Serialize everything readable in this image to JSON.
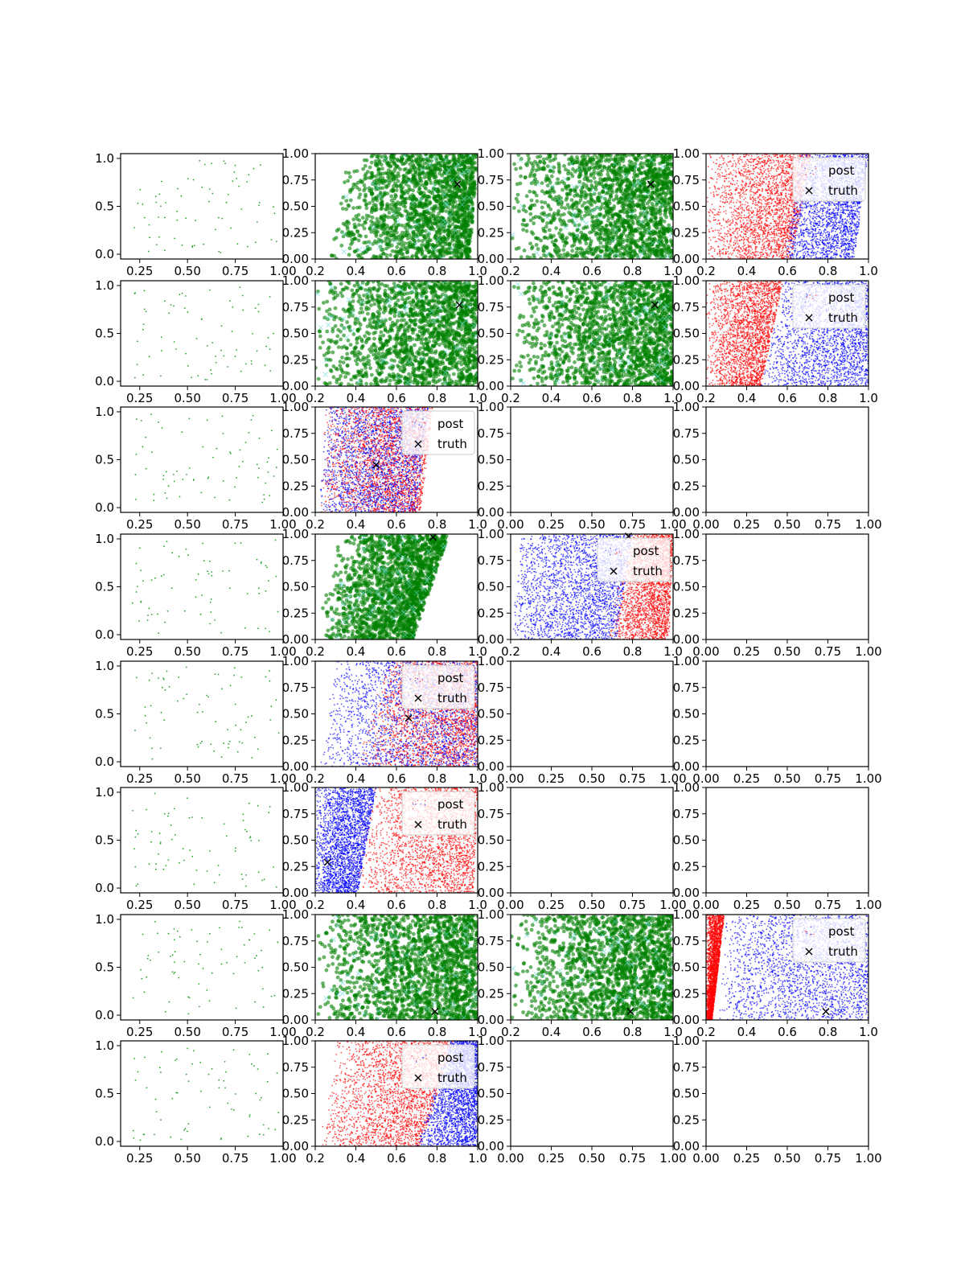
{
  "figure": {
    "rows": 8,
    "cols": 4
  },
  "legend_labels": {
    "post": "post",
    "truth": "truth"
  },
  "colors": {
    "sample": "#2ca02c",
    "green": "#008000",
    "cyan": "#66d9d9",
    "red": "#ff0000",
    "blue": "#0000ff",
    "truth": "#000000"
  },
  "chart_data": [
    {
      "row": 1,
      "col": 1,
      "type": "scatter",
      "style": "sample",
      "xlim": [
        0.15,
        1.0
      ],
      "ylim": [
        -0.05,
        1.05
      ],
      "xticks": [
        "0.25",
        "0.50",
        "0.75",
        "1.00"
      ],
      "yticks": [
        "0.0",
        "0.5",
        "1.0"
      ],
      "n_points": 70
    },
    {
      "row": 1,
      "col": 2,
      "type": "scatter",
      "style": "green",
      "xlim": [
        0.2,
        1.0
      ],
      "ylim": [
        0.0,
        1.0
      ],
      "xticks": [
        "0.2",
        "0.4",
        "0.6",
        "0.8",
        "1.0"
      ],
      "yticks": [
        "0.00",
        "0.25",
        "0.50",
        "0.75",
        "1.00"
      ],
      "region": {
        "left_bottom": 0.25,
        "left_top": 0.35,
        "right_bottom": 0.96,
        "right_top": 1.0
      },
      "truth": [
        0.9,
        0.71
      ],
      "legend": false
    },
    {
      "row": 1,
      "col": 3,
      "type": "scatter",
      "style": "green",
      "xlim": [
        0.2,
        1.0
      ],
      "ylim": [
        0.0,
        1.0
      ],
      "xticks": [
        "0.2",
        "0.4",
        "0.6",
        "0.8",
        "1.0"
      ],
      "yticks": [
        "0.00",
        "0.25",
        "0.50",
        "0.75",
        "1.00"
      ],
      "region": {
        "left_bottom": 0.2,
        "left_top": 0.2,
        "right_bottom": 1.0,
        "right_top": 1.0
      },
      "truth": [
        0.89,
        0.71
      ],
      "legend": false
    },
    {
      "row": 1,
      "col": 4,
      "type": "scatter",
      "style": "redblue",
      "xlim": [
        0.2,
        1.0
      ],
      "ylim": [
        0.0,
        1.0
      ],
      "xticks": [
        "0.2",
        "0.4",
        "0.6",
        "0.8",
        "1.0"
      ],
      "yticks": [
        "0.00",
        "0.25",
        "0.50",
        "0.75",
        "1.00"
      ],
      "red": {
        "left_bottom": 0.2,
        "left_top": 0.2,
        "right_bottom": 0.62,
        "right_top": 0.72
      },
      "blue": {
        "left_bottom": 0.58,
        "left_top": 0.66,
        "right_bottom": 0.93,
        "right_top": 1.0
      },
      "legend": true
    },
    {
      "row": 2,
      "col": 1,
      "type": "scatter",
      "style": "sample",
      "xlim": [
        0.15,
        1.0
      ],
      "ylim": [
        -0.05,
        1.05
      ],
      "xticks": [
        "0.25",
        "0.50",
        "0.75",
        "1.00"
      ],
      "yticks": [
        "0.0",
        "0.5",
        "1.0"
      ],
      "n_points": 70
    },
    {
      "row": 2,
      "col": 2,
      "type": "scatter",
      "style": "green",
      "xlim": [
        0.2,
        1.0
      ],
      "ylim": [
        0.0,
        1.0
      ],
      "xticks": [
        "0.2",
        "0.4",
        "0.6",
        "0.8",
        "1.0"
      ],
      "yticks": [
        "0.00",
        "0.25",
        "0.50",
        "0.75",
        "1.00"
      ],
      "region": {
        "left_bottom": 0.2,
        "left_top": 0.2,
        "right_bottom": 1.0,
        "right_top": 1.0
      },
      "truth": [
        0.91,
        0.77
      ],
      "legend": false
    },
    {
      "row": 2,
      "col": 3,
      "type": "scatter",
      "style": "green",
      "xlim": [
        0.2,
        1.0
      ],
      "ylim": [
        0.0,
        1.0
      ],
      "xticks": [
        "0.2",
        "0.4",
        "0.6",
        "0.8",
        "1.0"
      ],
      "yticks": [
        "0.00",
        "0.25",
        "0.50",
        "0.75",
        "1.00"
      ],
      "region": {
        "left_bottom": 0.2,
        "left_top": 0.2,
        "right_bottom": 1.0,
        "right_top": 1.0
      },
      "truth": [
        0.91,
        0.77
      ],
      "legend": false
    },
    {
      "row": 2,
      "col": 4,
      "type": "scatter",
      "style": "redblue",
      "xlim": [
        0.2,
        1.0
      ],
      "ylim": [
        0.0,
        1.0
      ],
      "xticks": [
        "0.2",
        "0.4",
        "0.6",
        "0.8",
        "1.0"
      ],
      "yticks": [
        "0.00",
        "0.25",
        "0.50",
        "0.75",
        "1.00"
      ],
      "red": {
        "left_bottom": 0.2,
        "left_top": 0.2,
        "right_bottom": 0.47,
        "right_top": 0.58
      },
      "blue": {
        "left_bottom": 0.47,
        "left_top": 0.58,
        "right_bottom": 1.0,
        "right_top": 1.0
      },
      "legend": true
    },
    {
      "row": 3,
      "col": 1,
      "type": "scatter",
      "style": "sample",
      "xlim": [
        0.15,
        1.0
      ],
      "ylim": [
        -0.05,
        1.05
      ],
      "xticks": [
        "0.25",
        "0.50",
        "0.75",
        "1.00"
      ],
      "yticks": [
        "0.0",
        "0.5",
        "1.0"
      ],
      "n_points": 70
    },
    {
      "row": 3,
      "col": 2,
      "type": "scatter",
      "style": "redblue",
      "mixed": true,
      "xlim": [
        0.2,
        1.0
      ],
      "ylim": [
        0.0,
        1.0
      ],
      "xticks": [
        "0.2",
        "0.4",
        "0.6",
        "0.8",
        "1.0"
      ],
      "yticks": [
        "0.00",
        "0.25",
        "0.50",
        "0.75",
        "1.00"
      ],
      "red": {
        "left_bottom": 0.22,
        "left_top": 0.25,
        "right_bottom": 0.72,
        "right_top": 0.78
      },
      "blue": {
        "left_bottom": 0.22,
        "left_top": 0.25,
        "right_bottom": 0.7,
        "right_top": 0.76
      },
      "truth": [
        0.5,
        0.45
      ],
      "legend": true
    },
    {
      "row": 3,
      "col": 3,
      "type": "empty",
      "xlim": [
        0.0,
        1.0
      ],
      "ylim": [
        0.0,
        1.0
      ],
      "xticks": [
        "0.00",
        "0.25",
        "0.50",
        "0.75",
        "1.00"
      ],
      "yticks": [
        "0.00",
        "0.25",
        "0.50",
        "0.75",
        "1.00"
      ]
    },
    {
      "row": 3,
      "col": 4,
      "type": "empty",
      "xlim": [
        0.0,
        1.0
      ],
      "ylim": [
        0.0,
        1.0
      ],
      "xticks": [
        "0.00",
        "0.25",
        "0.50",
        "0.75",
        "1.00"
      ],
      "yticks": [
        "0.00",
        "0.25",
        "0.50",
        "0.75",
        "1.00"
      ]
    },
    {
      "row": 4,
      "col": 1,
      "type": "scatter",
      "style": "sample",
      "xlim": [
        0.15,
        1.0
      ],
      "ylim": [
        -0.05,
        1.05
      ],
      "xticks": [
        "0.25",
        "0.50",
        "0.75",
        "1.00"
      ],
      "yticks": [
        "0.0",
        "0.5",
        "1.0"
      ],
      "n_points": 70
    },
    {
      "row": 4,
      "col": 2,
      "type": "scatter",
      "style": "green",
      "xlim": [
        0.2,
        1.0
      ],
      "ylim": [
        0.0,
        1.0
      ],
      "xticks": [
        "0.2",
        "0.4",
        "0.6",
        "0.8",
        "1.0"
      ],
      "yticks": [
        "0.00",
        "0.25",
        "0.50",
        "0.75",
        "1.00"
      ],
      "region": {
        "left_bottom": 0.2,
        "left_top": 0.32,
        "right_bottom": 0.68,
        "right_top": 0.86
      },
      "truth": [
        0.78,
        0.97
      ],
      "legend": false
    },
    {
      "row": 4,
      "col": 3,
      "type": "scatter",
      "style": "redblue",
      "xlim": [
        0.2,
        1.0
      ],
      "ylim": [
        0.0,
        1.0
      ],
      "xticks": [
        "0.2",
        "0.4",
        "0.6",
        "0.8",
        "1.0"
      ],
      "yticks": [
        "0.00",
        "0.25",
        "0.50",
        "0.75",
        "1.00"
      ],
      "blue": {
        "left_bottom": 0.2,
        "left_top": 0.25,
        "right_bottom": 0.72,
        "right_top": 0.8
      },
      "red": {
        "left_bottom": 0.68,
        "left_top": 0.78,
        "right_bottom": 0.98,
        "right_top": 1.0
      },
      "truth": [
        0.78,
        0.98
      ],
      "legend": true
    },
    {
      "row": 4,
      "col": 4,
      "type": "empty",
      "xlim": [
        0.0,
        1.0
      ],
      "ylim": [
        0.0,
        1.0
      ],
      "xticks": [
        "0.00",
        "0.25",
        "0.50",
        "0.75",
        "1.00"
      ],
      "yticks": [
        "0.00",
        "0.25",
        "0.50",
        "0.75",
        "1.00"
      ]
    },
    {
      "row": 5,
      "col": 1,
      "type": "scatter",
      "style": "sample",
      "xlim": [
        0.15,
        1.0
      ],
      "ylim": [
        -0.05,
        1.05
      ],
      "xticks": [
        "0.25",
        "0.50",
        "0.75",
        "1.00"
      ],
      "yticks": [
        "0.0",
        "0.5",
        "1.0"
      ],
      "n_points": 70
    },
    {
      "row": 5,
      "col": 2,
      "type": "scatter",
      "style": "redblue",
      "mixed": true,
      "xlim": [
        0.2,
        1.0
      ],
      "ylim": [
        0.0,
        1.0
      ],
      "xticks": [
        "0.2",
        "0.4",
        "0.6",
        "0.8",
        "1.0"
      ],
      "yticks": [
        "0.00",
        "0.25",
        "0.50",
        "0.75",
        "1.00"
      ],
      "red": {
        "left_bottom": 0.4,
        "left_top": 0.55,
        "right_bottom": 1.0,
        "right_top": 1.0
      },
      "blue": {
        "left_bottom": 0.22,
        "left_top": 0.3,
        "right_bottom": 1.0,
        "right_top": 1.0
      },
      "truth": [
        0.66,
        0.46
      ],
      "legend": true
    },
    {
      "row": 5,
      "col": 3,
      "type": "empty",
      "xlim": [
        0.0,
        1.0
      ],
      "ylim": [
        0.0,
        1.0
      ],
      "xticks": [
        "0.00",
        "0.25",
        "0.50",
        "0.75",
        "1.00"
      ],
      "yticks": [
        "0.00",
        "0.25",
        "0.50",
        "0.75",
        "1.00"
      ]
    },
    {
      "row": 5,
      "col": 4,
      "type": "empty",
      "xlim": [
        0.0,
        1.0
      ],
      "ylim": [
        0.0,
        1.0
      ],
      "xticks": [
        "0.00",
        "0.25",
        "0.50",
        "0.75",
        "1.00"
      ],
      "yticks": [
        "0.00",
        "0.25",
        "0.50",
        "0.75",
        "1.00"
      ]
    },
    {
      "row": 6,
      "col": 1,
      "type": "scatter",
      "style": "sample",
      "xlim": [
        0.15,
        1.0
      ],
      "ylim": [
        -0.05,
        1.05
      ],
      "xticks": [
        "0.25",
        "0.50",
        "0.75",
        "1.00"
      ],
      "yticks": [
        "0.0",
        "0.5",
        "1.0"
      ],
      "n_points": 70
    },
    {
      "row": 6,
      "col": 2,
      "type": "scatter",
      "style": "redblue",
      "xlim": [
        0.2,
        1.0
      ],
      "ylim": [
        0.0,
        1.0
      ],
      "xticks": [
        "0.2",
        "0.4",
        "0.6",
        "0.8",
        "1.0"
      ],
      "yticks": [
        "0.00",
        "0.25",
        "0.50",
        "0.75",
        "1.00"
      ],
      "blue": {
        "left_bottom": 0.2,
        "left_top": 0.2,
        "right_bottom": 0.41,
        "right_top": 0.5
      },
      "red": {
        "left_bottom": 0.4,
        "left_top": 0.48,
        "right_bottom": 0.98,
        "right_top": 1.0
      },
      "truth": [
        0.26,
        0.29
      ],
      "legend": true
    },
    {
      "row": 6,
      "col": 3,
      "type": "empty",
      "xlim": [
        0.0,
        1.0
      ],
      "ylim": [
        0.0,
        1.0
      ],
      "xticks": [
        "0.00",
        "0.25",
        "0.50",
        "0.75",
        "1.00"
      ],
      "yticks": [
        "0.00",
        "0.25",
        "0.50",
        "0.75",
        "1.00"
      ]
    },
    {
      "row": 6,
      "col": 4,
      "type": "empty",
      "xlim": [
        0.0,
        1.0
      ],
      "ylim": [
        0.0,
        1.0
      ],
      "xticks": [
        "0.00",
        "0.25",
        "0.50",
        "0.75",
        "1.00"
      ],
      "yticks": [
        "0.00",
        "0.25",
        "0.50",
        "0.75",
        "1.00"
      ]
    },
    {
      "row": 7,
      "col": 1,
      "type": "scatter",
      "style": "sample",
      "xlim": [
        0.15,
        1.0
      ],
      "ylim": [
        -0.05,
        1.05
      ],
      "xticks": [
        "0.25",
        "0.50",
        "0.75",
        "1.00"
      ],
      "yticks": [
        "0.0",
        "0.5",
        "1.0"
      ],
      "n_points": 70
    },
    {
      "row": 7,
      "col": 2,
      "type": "scatter",
      "style": "green",
      "xlim": [
        0.2,
        1.0
      ],
      "ylim": [
        0.0,
        1.0
      ],
      "xticks": [
        "0.2",
        "0.4",
        "0.6",
        "0.8",
        "1.0"
      ],
      "yticks": [
        "0.00",
        "0.25",
        "0.50",
        "0.75",
        "1.00"
      ],
      "region": {
        "left_bottom": 0.2,
        "left_top": 0.2,
        "right_bottom": 1.0,
        "right_top": 1.0
      },
      "truth": [
        0.79,
        0.08
      ],
      "legend": false
    },
    {
      "row": 7,
      "col": 3,
      "type": "scatter",
      "style": "green",
      "xlim": [
        0.2,
        1.0
      ],
      "ylim": [
        0.0,
        1.0
      ],
      "xticks": [
        "0.2",
        "0.4",
        "0.6",
        "0.8",
        "1.0"
      ],
      "yticks": [
        "0.00",
        "0.25",
        "0.50",
        "0.75",
        "1.00"
      ],
      "region": {
        "left_bottom": 0.2,
        "left_top": 0.2,
        "right_bottom": 1.0,
        "right_top": 1.0
      },
      "truth": [
        0.79,
        0.08
      ],
      "legend": false
    },
    {
      "row": 7,
      "col": 4,
      "type": "scatter",
      "style": "redblue",
      "xlim": [
        0.2,
        1.0
      ],
      "ylim": [
        0.0,
        1.0
      ],
      "xticks": [
        "0.2",
        "0.4",
        "0.6",
        "0.8",
        "1.0"
      ],
      "yticks": [
        "0.00",
        "0.25",
        "0.50",
        "0.75",
        "1.00"
      ],
      "red": {
        "left_bottom": 0.2,
        "left_top": 0.2,
        "right_bottom": 0.23,
        "right_top": 0.29
      },
      "blue": {
        "left_bottom": 0.26,
        "left_top": 0.3,
        "right_bottom": 1.0,
        "right_top": 1.0
      },
      "truth": [
        0.79,
        0.08
      ],
      "legend": true
    },
    {
      "row": 8,
      "col": 1,
      "type": "scatter",
      "style": "sample",
      "xlim": [
        0.15,
        1.0
      ],
      "ylim": [
        -0.05,
        1.05
      ],
      "xticks": [
        "0.25",
        "0.50",
        "0.75",
        "1.00"
      ],
      "yticks": [
        "0.0",
        "0.5",
        "1.0"
      ],
      "n_points": 70
    },
    {
      "row": 8,
      "col": 2,
      "type": "scatter",
      "style": "redblue",
      "xlim": [
        0.2,
        1.0
      ],
      "ylim": [
        0.0,
        1.0
      ],
      "xticks": [
        "0.2",
        "0.4",
        "0.6",
        "0.8",
        "1.0"
      ],
      "yticks": [
        "0.00",
        "0.25",
        "0.50",
        "0.75",
        "1.00"
      ],
      "red": {
        "left_bottom": 0.22,
        "left_top": 0.3,
        "right_bottom": 0.72,
        "right_top": 0.88
      },
      "blue": {
        "left_bottom": 0.7,
        "left_top": 0.86,
        "right_bottom": 1.0,
        "right_top": 1.0
      },
      "legend": true
    },
    {
      "row": 8,
      "col": 3,
      "type": "empty",
      "xlim": [
        0.0,
        1.0
      ],
      "ylim": [
        0.0,
        1.0
      ],
      "xticks": [
        "0.00",
        "0.25",
        "0.50",
        "0.75",
        "1.00"
      ],
      "yticks": [
        "0.00",
        "0.25",
        "0.50",
        "0.75",
        "1.00"
      ]
    },
    {
      "row": 8,
      "col": 4,
      "type": "empty",
      "xlim": [
        0.0,
        1.0
      ],
      "ylim": [
        0.0,
        1.0
      ],
      "xticks": [
        "0.00",
        "0.25",
        "0.50",
        "0.75",
        "1.00"
      ],
      "yticks": [
        "0.00",
        "0.25",
        "0.50",
        "0.75",
        "1.00"
      ]
    }
  ]
}
